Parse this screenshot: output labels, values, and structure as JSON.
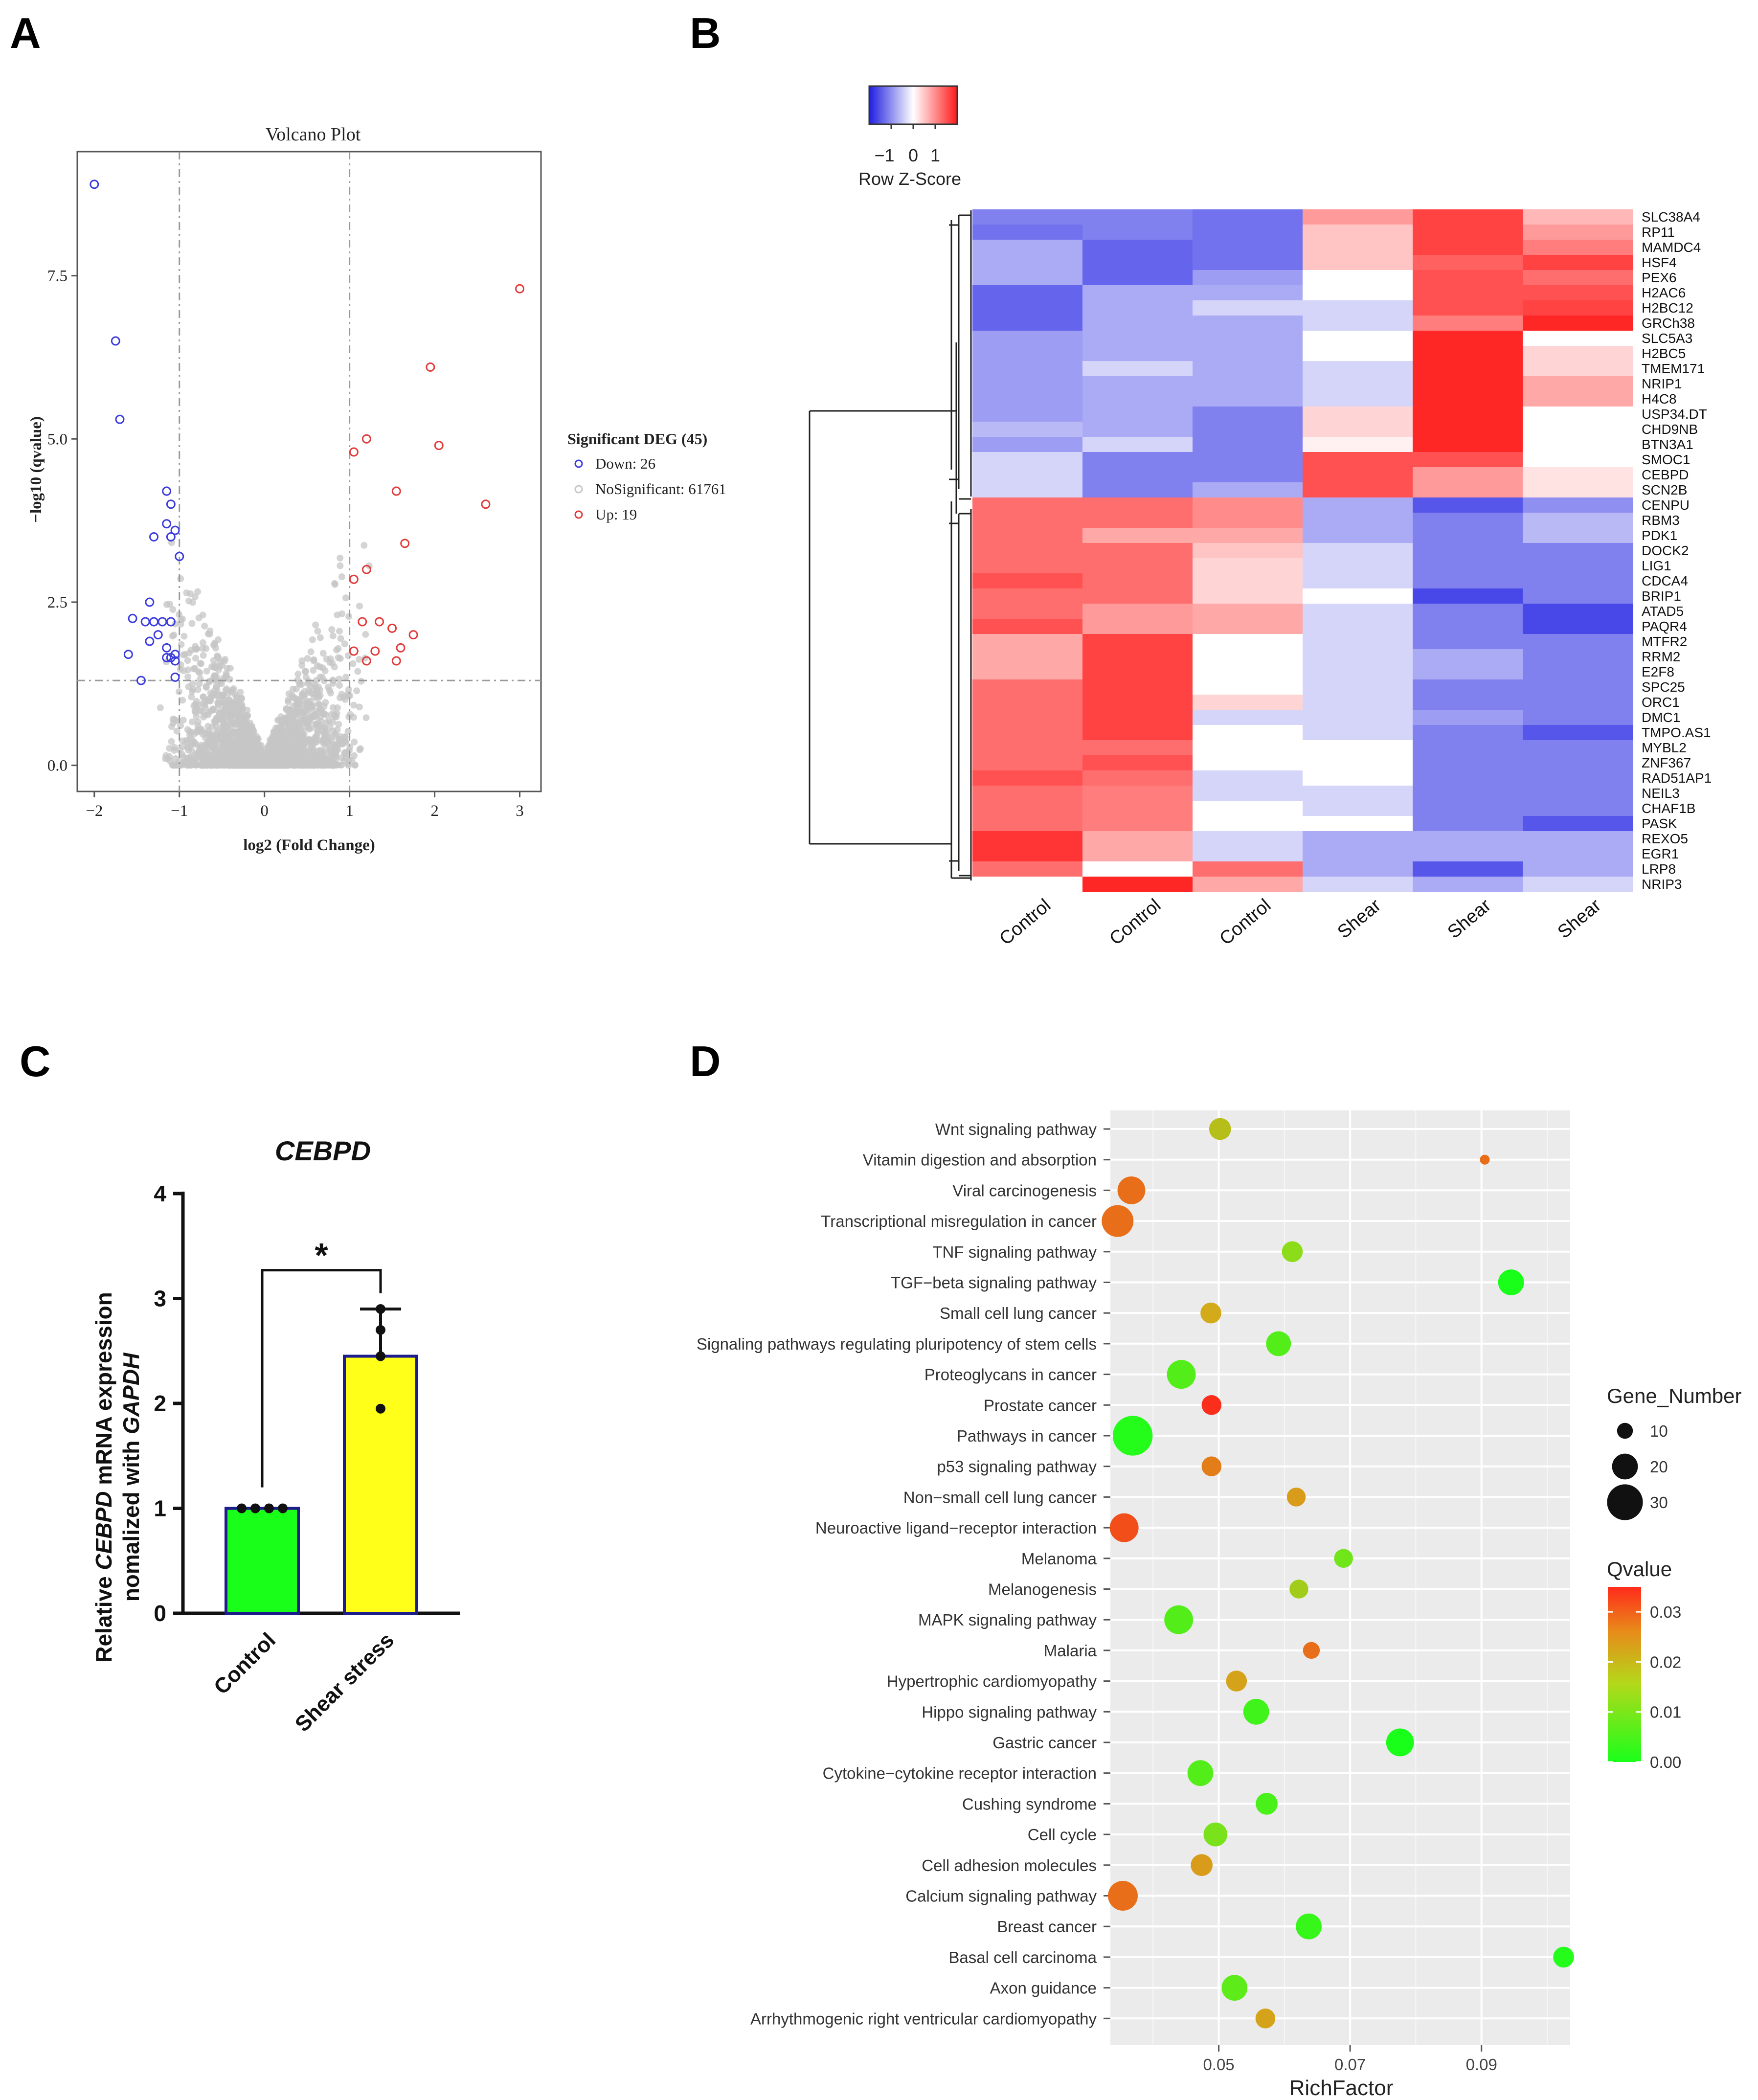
{
  "panels": {
    "A": "A",
    "B": "B",
    "C": "C",
    "D": "D"
  },
  "chart_data": [
    {
      "panel": "A",
      "type": "scatter",
      "title": "Volcano Plot",
      "xlabel": "log2 (Fold Change)",
      "ylabel": "−log10 (qvalue)",
      "xlim": [
        -2.2,
        3.25
      ],
      "ylim": [
        -0.4,
        9.4
      ],
      "xticks": [
        "−2",
        "−1",
        "0",
        "1",
        "2",
        "3"
      ],
      "xtick_values": [
        -2,
        -1,
        0,
        1,
        2,
        3
      ],
      "yticks": [
        "0.0",
        "2.5",
        "5.0",
        "7.5"
      ],
      "ytick_values": [
        0,
        2.5,
        5.0,
        7.5
      ],
      "thresholds": {
        "fold_change": [
          -1,
          1
        ],
        "qvalue": 1.3
      },
      "legend": {
        "title": "Significant DEG (45)",
        "items": [
          "Down: 26",
          "NoSignificant: 61761",
          "Up: 19"
        ]
      },
      "colors": {
        "down": "#3b3bde",
        "ns": "#c6c6c6",
        "up": "#e23a3a"
      },
      "series": [
        {
          "name": "Down",
          "x": [
            -2.0,
            -1.75,
            -1.7,
            -1.15,
            -1.1,
            -1.15,
            -1.05,
            -1.3,
            -1.1,
            -1.0,
            -1.35,
            -1.4,
            -1.55,
            -1.3,
            -1.2,
            -1.1,
            -1.25,
            -1.35,
            -1.15,
            -1.05,
            -1.6,
            -1.15,
            -1.1,
            -1.05,
            -1.45,
            -1.05
          ],
          "y": [
            8.9,
            6.5,
            5.3,
            4.2,
            4.0,
            3.7,
            3.6,
            3.5,
            3.5,
            3.2,
            2.5,
            2.2,
            2.25,
            2.2,
            2.2,
            2.2,
            2.0,
            1.9,
            1.8,
            1.7,
            1.7,
            1.65,
            1.65,
            1.6,
            1.3,
            1.35
          ]
        },
        {
          "name": "Up",
          "x": [
            3.0,
            1.95,
            2.05,
            2.6,
            1.2,
            1.05,
            1.55,
            1.65,
            1.2,
            1.05,
            1.15,
            1.35,
            1.5,
            1.75,
            1.6,
            1.3,
            1.05,
            1.2,
            1.55
          ],
          "y": [
            7.3,
            6.1,
            4.9,
            4.0,
            5.0,
            4.8,
            4.2,
            3.4,
            3.0,
            2.85,
            2.2,
            2.2,
            2.1,
            2.0,
            1.8,
            1.75,
            1.75,
            1.6,
            1.6
          ]
        }
      ]
    },
    {
      "panel": "B",
      "type": "heatmap",
      "colorkey": {
        "title": "Row Z-Score",
        "ticks": [
          "−1",
          "0",
          "1"
        ]
      },
      "columns": [
        "Control",
        "Control",
        "Control",
        "Shear",
        "Shear",
        "Shear"
      ],
      "rows": [
        "SLC38A4",
        "RP11",
        "MAMDC4",
        "HSF4",
        "PEX6",
        "H2AC6",
        "H2BC12",
        "GRCh38",
        "SLC5A3",
        "H2BC5",
        "TMEM171",
        "NRIP1",
        "H4C8",
        "USP34.DT",
        "CHD9NB",
        "BTN3A1",
        "SMOC1",
        "CEBPD",
        "SCN2B",
        "CENPU",
        "RBM3",
        "PDK1",
        "DOCK2",
        "LIG1",
        "CDCA4",
        "BRIP1",
        "ATAD5",
        "PAQR4",
        "MTFR2",
        "RRM2",
        "E2F8",
        "SPC25",
        "ORC1",
        "DMC1",
        "TMPO.AS1",
        "MYBL2",
        "ZNF367",
        "RAD51AP1",
        "NEIL3",
        "CHAF1B",
        "PASK",
        "REXO5",
        "EGR1",
        "LRP8",
        "NRIP3"
      ],
      "values": [
        [
          -0.9,
          -0.9,
          -1.0,
          0.7,
          1.3,
          0.5
        ],
        [
          -1.0,
          -0.9,
          -1.0,
          0.4,
          1.3,
          0.7
        ],
        [
          -0.6,
          -1.1,
          -1.0,
          0.4,
          1.3,
          0.9
        ],
        [
          -0.6,
          -1.1,
          -1.0,
          0.4,
          1.1,
          1.3
        ],
        [
          -0.6,
          -1.1,
          -0.7,
          0.0,
          1.2,
          1.0
        ],
        [
          -1.1,
          -0.6,
          -0.6,
          0.0,
          1.2,
          1.2
        ],
        [
          -1.1,
          -0.6,
          -0.3,
          -0.3,
          1.2,
          1.3
        ],
        [
          -1.1,
          -0.6,
          -0.6,
          -0.3,
          0.9,
          1.5
        ],
        [
          -0.7,
          -0.6,
          -0.6,
          0.0,
          1.5,
          0.0
        ],
        [
          -0.7,
          -0.6,
          -0.6,
          0.0,
          1.5,
          0.3
        ],
        [
          -0.7,
          -0.3,
          -0.6,
          -0.3,
          1.5,
          0.3
        ],
        [
          -0.7,
          -0.6,
          -0.6,
          -0.3,
          1.5,
          0.6
        ],
        [
          -0.7,
          -0.6,
          -0.6,
          -0.3,
          1.5,
          0.6
        ],
        [
          -0.7,
          -0.6,
          -0.9,
          0.3,
          1.5,
          0.0
        ],
        [
          -0.5,
          -0.6,
          -0.9,
          0.3,
          1.5,
          0.0
        ],
        [
          -0.7,
          -0.3,
          -0.9,
          0.1,
          1.5,
          0.0
        ],
        [
          -0.3,
          -0.9,
          -0.9,
          1.2,
          1.2,
          0.0
        ],
        [
          -0.3,
          -0.9,
          -0.9,
          1.2,
          0.7,
          0.2
        ],
        [
          -0.3,
          -0.9,
          -0.6,
          1.2,
          0.7,
          0.2
        ],
        [
          1.0,
          1.0,
          0.8,
          -0.6,
          -1.2,
          -0.8
        ],
        [
          1.0,
          1.0,
          0.8,
          -0.6,
          -0.9,
          -0.5
        ],
        [
          1.0,
          0.6,
          0.6,
          -0.6,
          -0.9,
          -0.5
        ],
        [
          1.0,
          1.0,
          0.4,
          -0.3,
          -0.9,
          -0.9
        ],
        [
          1.0,
          1.0,
          0.3,
          -0.3,
          -0.9,
          -0.9
        ],
        [
          1.2,
          1.0,
          0.3,
          -0.3,
          -0.9,
          -0.9
        ],
        [
          1.0,
          1.0,
          0.3,
          0.0,
          -1.3,
          -0.9
        ],
        [
          1.0,
          0.7,
          0.6,
          -0.3,
          -0.9,
          -1.3
        ],
        [
          1.2,
          0.7,
          0.6,
          -0.3,
          -0.9,
          -1.3
        ],
        [
          0.6,
          1.3,
          0.0,
          -0.3,
          -0.9,
          -0.9
        ],
        [
          0.6,
          1.3,
          0.0,
          -0.3,
          -0.6,
          -0.9
        ],
        [
          0.6,
          1.3,
          0.0,
          -0.3,
          -0.6,
          -0.9
        ],
        [
          1.0,
          1.3,
          0.0,
          -0.3,
          -0.9,
          -0.9
        ],
        [
          1.0,
          1.3,
          0.3,
          -0.3,
          -0.9,
          -0.9
        ],
        [
          1.0,
          1.3,
          -0.3,
          -0.3,
          -0.7,
          -0.9
        ],
        [
          1.0,
          1.3,
          0.0,
          -0.3,
          -0.9,
          -1.2
        ],
        [
          1.0,
          1.0,
          0.0,
          0.0,
          -0.9,
          -0.9
        ],
        [
          1.0,
          1.2,
          0.0,
          0.0,
          -0.9,
          -0.9
        ],
        [
          1.2,
          1.0,
          -0.3,
          0.0,
          -0.9,
          -0.9
        ],
        [
          1.0,
          0.9,
          -0.3,
          -0.3,
          -0.9,
          -0.9
        ],
        [
          1.0,
          0.9,
          0.0,
          -0.3,
          -0.9,
          -0.9
        ],
        [
          1.0,
          0.9,
          0.0,
          0.0,
          -0.9,
          -1.2
        ],
        [
          1.4,
          0.6,
          -0.3,
          -0.6,
          -0.6,
          -0.6
        ],
        [
          1.4,
          0.6,
          -0.3,
          -0.6,
          -0.6,
          -0.6
        ],
        [
          1.0,
          0.0,
          1.0,
          -0.6,
          -1.2,
          -0.6
        ],
        [
          0.0,
          1.5,
          0.6,
          -0.3,
          -0.6,
          -0.3
        ]
      ]
    },
    {
      "panel": "C",
      "type": "bar",
      "title": "CEBPD",
      "ylabel_parts": [
        "Relative ",
        "CEBPD",
        " mRNA expression"
      ],
      "ylabel_line2_parts": [
        "nomalized with ",
        "GAPDH"
      ],
      "categories": [
        "Control",
        "Shear stress"
      ],
      "values": [
        1.0,
        2.45
      ],
      "errors": [
        0.0,
        0.45
      ],
      "points": [
        [
          1.0,
          1.0,
          1.0,
          1.0
        ],
        [
          2.9,
          2.7,
          2.45,
          1.95
        ]
      ],
      "ylim": [
        0,
        4
      ],
      "yticks": [
        "0",
        "1",
        "2",
        "3",
        "4"
      ],
      "ytick_values": [
        0,
        1,
        2,
        3,
        4
      ],
      "significance": "*",
      "colors": {
        "Control": "#1aff1a",
        "Shear stress": "#ffff1a",
        "outline": "#1c1c8c"
      }
    },
    {
      "panel": "D",
      "type": "scatter",
      "xlabel": "RichFactor",
      "xlim": [
        0.0335,
        0.1035
      ],
      "xticks": [
        "0.05",
        "0.07",
        "0.09"
      ],
      "xtick_values": [
        0.05,
        0.07,
        0.09
      ],
      "categories": [
        "Wnt signaling pathway",
        "Vitamin digestion and absorption",
        "Viral carcinogenesis",
        "Transcriptional misregulation in cancer",
        "TNF signaling pathway",
        "TGF−beta signaling pathway",
        "Small cell lung cancer",
        "Signaling pathways regulating pluripotency of stem cells",
        "Proteoglycans in cancer",
        "Prostate cancer",
        "Pathways in cancer",
        "p53 signaling pathway",
        "Non−small cell lung cancer",
        "Neuroactive ligand−receptor interaction",
        "Melanoma",
        "Melanogenesis",
        "MAPK signaling pathway",
        "Malaria",
        "Hypertrophic cardiomyopathy",
        "Hippo signaling pathway",
        "Gastric cancer",
        "Cytokine−cytokine receptor interaction",
        "Cushing syndrome",
        "Cell cycle",
        "Cell adhesion molecules",
        "Calcium signaling pathway",
        "Breast cancer",
        "Basal cell carcinoma",
        "Axon guidance",
        "Arrhythmogenic right ventricular cardiomyopathy"
      ],
      "richfactor": [
        0.0502,
        0.0905,
        0.0367,
        0.0346,
        0.0612,
        0.0945,
        0.0488,
        0.0591,
        0.0443,
        0.0489,
        0.0369,
        0.0489,
        0.0618,
        0.0356,
        0.069,
        0.0622,
        0.0439,
        0.0641,
        0.0527,
        0.0557,
        0.0776,
        0.0472,
        0.0573,
        0.0495,
        0.0474,
        0.0354,
        0.0637,
        0.1025,
        0.0524,
        0.0571
      ],
      "gene_number": [
        16,
        4,
        22,
        26,
        15,
        20,
        15,
        19,
        23,
        14,
        34,
        14,
        13,
        23,
        13,
        13,
        23,
        11,
        15,
        20,
        22,
        20,
        16,
        18,
        16,
        24,
        20,
        15,
        20,
        14
      ],
      "qvalue": [
        0.018,
        0.03,
        0.03,
        0.03,
        0.012,
        0.0,
        0.022,
        0.006,
        0.006,
        0.034,
        0.001,
        0.028,
        0.024,
        0.032,
        0.009,
        0.015,
        0.006,
        0.03,
        0.023,
        0.004,
        0.0,
        0.006,
        0.005,
        0.01,
        0.024,
        0.03,
        0.003,
        0.001,
        0.007,
        0.023
      ],
      "size_legend": {
        "title": "Gene_Number",
        "items": [
          "10",
          "20",
          "30"
        ],
        "values": [
          10,
          20,
          30
        ]
      },
      "color_legend": {
        "title": "Qvalue",
        "ticks": [
          "0.03",
          "0.02",
          "0.01",
          "0.00"
        ],
        "tick_values": [
          0.03,
          0.02,
          0.01,
          0.0
        ]
      }
    }
  ]
}
